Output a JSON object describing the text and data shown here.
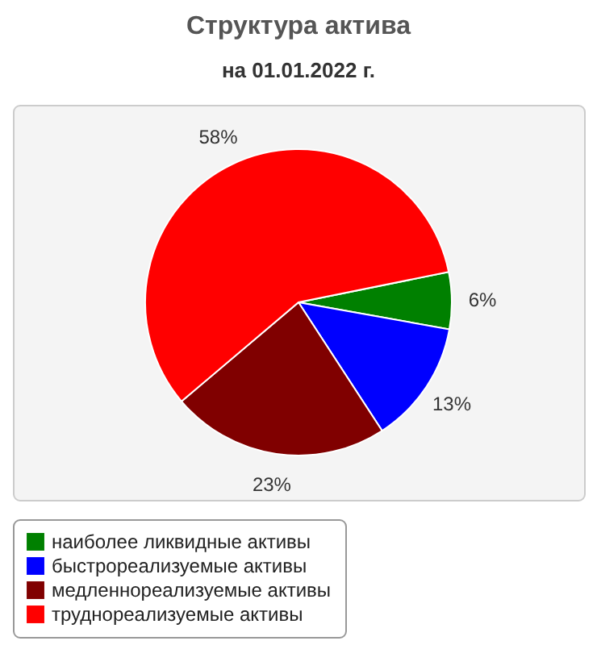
{
  "chart_data": {
    "type": "pie",
    "title": "Структура актива",
    "subtitle": "на 01.01.2022 г.",
    "categories": [
      "наиболее ликвидные активы",
      "быстрореализуемые активы",
      "медленнореализуемые активы",
      "труднореализуемые активы"
    ],
    "values": [
      6,
      13,
      23,
      58
    ],
    "colors": [
      "#008000",
      "#0000ff",
      "#800000",
      "#ff0000"
    ],
    "value_labels": [
      "6%",
      "13%",
      "23%",
      "58%"
    ],
    "legend": "bottom"
  }
}
